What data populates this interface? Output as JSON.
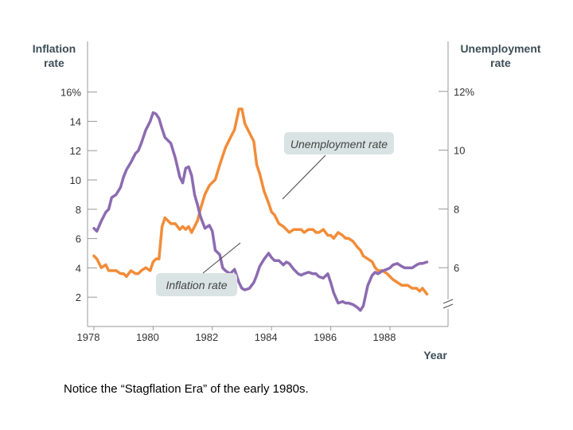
{
  "caption": "Notice the “Stagflation Era” of the early 1980s.",
  "chart_data": {
    "type": "line",
    "title": "",
    "left_axis_title": [
      "Inflation",
      "rate"
    ],
    "right_axis_title": [
      "Unemployment",
      "rate"
    ],
    "xlabel": "Year",
    "xlim": [
      1978,
      1989.3
    ],
    "x_ticks": [
      1978,
      1980,
      1982,
      1984,
      1986,
      1988
    ],
    "left_ylim": [
      0,
      16
    ],
    "left_ticks": [
      {
        "value": 2,
        "label": "2"
      },
      {
        "value": 4,
        "label": "4"
      },
      {
        "value": 6,
        "label": "6"
      },
      {
        "value": 8,
        "label": "8"
      },
      {
        "value": 10,
        "label": "10"
      },
      {
        "value": 12,
        "label": "12"
      },
      {
        "value": 14,
        "label": "14"
      },
      {
        "value": 16,
        "label": "16%"
      }
    ],
    "right_ylim": [
      4,
      12
    ],
    "right_ticks": [
      {
        "value": 6,
        "label": "6"
      },
      {
        "value": 8,
        "label": "8"
      },
      {
        "value": 10,
        "label": "10"
      },
      {
        "value": 12,
        "label": "12%"
      }
    ],
    "right_axis_break": true,
    "grid": false,
    "colors": {
      "inflation": "#8c6bb1",
      "unemployment": "#f28c38",
      "axis": "#999999",
      "callout_bg": "#d9e3e3"
    },
    "series": [
      {
        "name": "Inflation rate",
        "axis": "left",
        "color": "#8c6bb1",
        "x": [
          1978.0,
          1978.1,
          1978.25,
          1978.4,
          1978.5,
          1978.6,
          1978.75,
          1978.9,
          1979.0,
          1979.1,
          1979.25,
          1979.4,
          1979.5,
          1979.6,
          1979.75,
          1979.9,
          1980.0,
          1980.1,
          1980.2,
          1980.3,
          1980.4,
          1980.5,
          1980.6,
          1980.75,
          1980.9,
          1981.0,
          1981.1,
          1981.2,
          1981.3,
          1981.4,
          1981.5,
          1981.6,
          1981.75,
          1981.9,
          1982.0,
          1982.1,
          1982.25,
          1982.35,
          1982.45,
          1982.6,
          1982.75,
          1982.9,
          1983.0,
          1983.1,
          1983.25,
          1983.4,
          1983.5,
          1983.6,
          1983.75,
          1983.9,
          1984.0,
          1984.1,
          1984.25,
          1984.4,
          1984.5,
          1984.6,
          1984.75,
          1984.9,
          1985.0,
          1985.1,
          1985.25,
          1985.4,
          1985.5,
          1985.6,
          1985.75,
          1985.9,
          1986.0,
          1986.1,
          1986.25,
          1986.4,
          1986.5,
          1986.6,
          1986.75,
          1986.9,
          1987.0,
          1987.1,
          1987.25,
          1987.4,
          1987.5,
          1987.6,
          1987.75,
          1987.9,
          1988.0,
          1988.1,
          1988.25,
          1988.4,
          1988.5,
          1988.6,
          1988.75,
          1988.9,
          1989.0,
          1989.1,
          1989.25
        ],
        "values": [
          6.7,
          6.5,
          7.2,
          7.8,
          8.0,
          8.8,
          9.0,
          9.5,
          10.2,
          10.7,
          11.2,
          11.8,
          12.0,
          12.5,
          13.4,
          14.0,
          14.6,
          14.5,
          14.2,
          13.5,
          12.9,
          12.7,
          12.5,
          11.5,
          10.2,
          9.8,
          10.8,
          10.9,
          10.3,
          9.0,
          8.3,
          7.5,
          6.7,
          6.9,
          6.5,
          5.2,
          4.9,
          4.0,
          3.8,
          3.6,
          3.9,
          3.0,
          2.6,
          2.5,
          2.6,
          3.0,
          3.5,
          4.1,
          4.6,
          5.0,
          4.7,
          4.5,
          4.5,
          4.2,
          4.4,
          4.3,
          3.9,
          3.6,
          3.5,
          3.6,
          3.7,
          3.6,
          3.6,
          3.4,
          3.3,
          3.6,
          3.0,
          2.3,
          1.6,
          1.7,
          1.6,
          1.6,
          1.5,
          1.3,
          1.1,
          1.4,
          2.8,
          3.5,
          3.7,
          3.6,
          3.8,
          3.9,
          4.0,
          4.2,
          4.3,
          4.1,
          4.0,
          4.0,
          4.0,
          4.2,
          4.3,
          4.3,
          4.4
        ]
      },
      {
        "name": "Unemployment rate",
        "axis": "right",
        "color": "#f28c38",
        "x": [
          1978.0,
          1978.1,
          1978.25,
          1978.4,
          1978.5,
          1978.6,
          1978.75,
          1978.9,
          1979.0,
          1979.1,
          1979.25,
          1979.4,
          1979.5,
          1979.6,
          1979.75,
          1979.9,
          1980.0,
          1980.1,
          1980.2,
          1980.3,
          1980.4,
          1980.5,
          1980.6,
          1980.75,
          1980.9,
          1981.0,
          1981.1,
          1981.2,
          1981.3,
          1981.4,
          1981.5,
          1981.6,
          1981.75,
          1981.9,
          1982.0,
          1982.1,
          1982.25,
          1982.35,
          1982.45,
          1982.6,
          1982.75,
          1982.9,
          1983.0,
          1983.1,
          1983.25,
          1983.4,
          1983.5,
          1983.6,
          1983.75,
          1983.9,
          1984.0,
          1984.1,
          1984.25,
          1984.4,
          1984.5,
          1984.6,
          1984.75,
          1984.9,
          1985.0,
          1985.1,
          1985.25,
          1985.4,
          1985.5,
          1985.6,
          1985.75,
          1985.9,
          1986.0,
          1986.1,
          1986.25,
          1986.4,
          1986.5,
          1986.6,
          1986.75,
          1986.9,
          1987.0,
          1987.1,
          1987.25,
          1987.4,
          1987.5,
          1987.6,
          1987.75,
          1987.9,
          1988.0,
          1988.1,
          1988.25,
          1988.4,
          1988.5,
          1988.6,
          1988.75,
          1988.9,
          1989.0,
          1989.1,
          1989.25
        ],
        "values": [
          6.4,
          6.3,
          6.0,
          6.1,
          5.9,
          5.9,
          5.9,
          5.8,
          5.8,
          5.7,
          5.9,
          5.8,
          5.8,
          5.9,
          6.0,
          5.9,
          6.2,
          6.3,
          6.3,
          7.4,
          7.7,
          7.6,
          7.5,
          7.5,
          7.3,
          7.4,
          7.3,
          7.4,
          7.2,
          7.4,
          7.6,
          8.0,
          8.5,
          8.8,
          8.9,
          9.0,
          9.5,
          9.8,
          10.1,
          10.4,
          10.7,
          11.4,
          11.4,
          10.9,
          10.6,
          10.3,
          9.5,
          9.2,
          8.6,
          8.2,
          7.9,
          7.8,
          7.5,
          7.4,
          7.3,
          7.2,
          7.3,
          7.3,
          7.3,
          7.2,
          7.3,
          7.3,
          7.2,
          7.2,
          7.3,
          7.1,
          7.1,
          7.0,
          7.2,
          7.1,
          7.0,
          7.0,
          6.9,
          6.7,
          6.6,
          6.4,
          6.3,
          6.2,
          6.0,
          5.9,
          5.9,
          5.8,
          5.7,
          5.6,
          5.5,
          5.4,
          5.4,
          5.4,
          5.3,
          5.3,
          5.2,
          5.3,
          5.1
        ]
      }
    ],
    "callouts": [
      {
        "series": "Unemployment rate",
        "label": "Unemployment rate"
      },
      {
        "series": "Inflation rate",
        "label": "Inflation rate"
      }
    ]
  }
}
